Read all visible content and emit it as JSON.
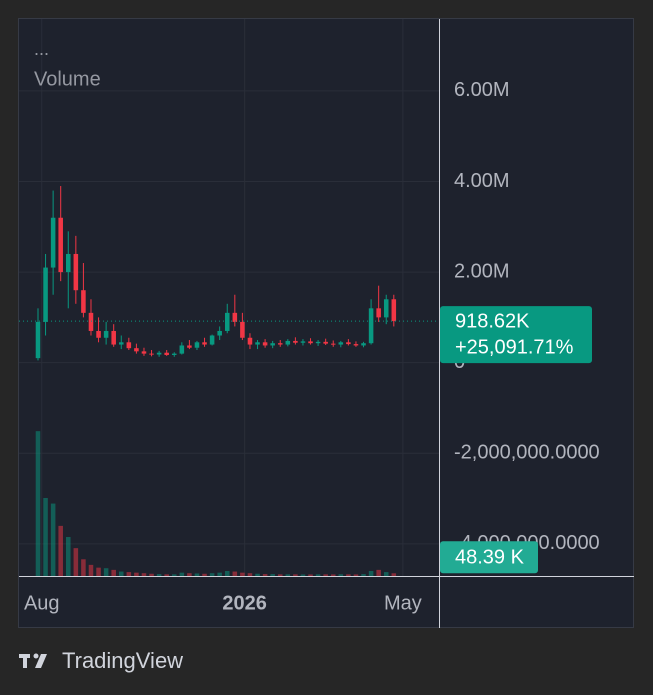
{
  "chart_data": {
    "type": "candlestick",
    "legend_dots": "...",
    "indicator_title": "Volume",
    "up_color": "#089981",
    "down_color": "#f23645",
    "grid": true,
    "ylim": [
      -4710000,
      7610000
    ],
    "yticks": [
      {
        "value": 6000000,
        "label": "6.00M"
      },
      {
        "value": 4000000,
        "label": "4.00M"
      },
      {
        "value": 2000000,
        "label": "2.00M"
      },
      0,
      {
        "value": -2000000,
        "label": "-2,000,000.0000"
      },
      {
        "value": -4000000,
        "label": "-4,000,000.0000"
      }
    ],
    "xlim": [
      -2.64,
      52.97
    ],
    "xticks": [
      {
        "value": 0.5,
        "label": "Aug"
      },
      {
        "value": 27.3,
        "label": "2026"
      },
      {
        "value": 48.2,
        "label": "May"
      }
    ],
    "open": [
      100000,
      900000,
      2100000,
      3200000,
      2000000,
      2400000,
      1600000,
      1100000,
      700000,
      550000,
      700000,
      400000,
      450000,
      320000,
      250000,
      200000,
      180000,
      220000,
      170000,
      200000,
      380000,
      330000,
      450000,
      400000,
      600000,
      700000,
      1100000,
      900000,
      550000,
      400000,
      450000,
      380000,
      430000,
      400000,
      480000,
      440000,
      470000,
      430000,
      460000,
      420000,
      400000,
      450000,
      410000,
      380000,
      430000,
      1200000,
      1000000,
      1400000
    ],
    "high": [
      1200000,
      2400000,
      3800000,
      3900000,
      2900000,
      2800000,
      2200000,
      1400000,
      1000000,
      900000,
      850000,
      600000,
      550000,
      420000,
      330000,
      280000,
      260000,
      280000,
      230000,
      450000,
      500000,
      480000,
      550000,
      620000,
      800000,
      1300000,
      1500000,
      1100000,
      650000,
      500000,
      520000,
      480000,
      500000,
      520000,
      560000,
      520000,
      540000,
      500000,
      530000,
      490000,
      480000,
      520000,
      470000,
      460000,
      1400000,
      1700000,
      1500000,
      1500000
    ],
    "low": [
      50000,
      600000,
      1500000,
      1800000,
      1200000,
      1300000,
      1000000,
      600000,
      450000,
      400000,
      350000,
      300000,
      280000,
      200000,
      150000,
      140000,
      130000,
      150000,
      130000,
      180000,
      300000,
      280000,
      350000,
      380000,
      500000,
      650000,
      800000,
      500000,
      300000,
      300000,
      330000,
      320000,
      350000,
      360000,
      400000,
      380000,
      400000,
      370000,
      390000,
      350000,
      340000,
      380000,
      350000,
      340000,
      400000,
      900000,
      850000,
      800000
    ],
    "close": [
      900000,
      2100000,
      3200000,
      2000000,
      2400000,
      1600000,
      1100000,
      700000,
      550000,
      700000,
      400000,
      450000,
      320000,
      250000,
      200000,
      180000,
      220000,
      170000,
      200000,
      380000,
      330000,
      450000,
      400000,
      600000,
      700000,
      1100000,
      900000,
      550000,
      400000,
      450000,
      380000,
      430000,
      400000,
      480000,
      440000,
      470000,
      430000,
      460000,
      420000,
      400000,
      450000,
      410000,
      380000,
      430000,
      1200000,
      1000000,
      1400000,
      918620
    ],
    "volume": [
      2600000,
      1400000,
      1300000,
      900000,
      700000,
      500000,
      300000,
      200000,
      150000,
      140000,
      110000,
      80000,
      70000,
      60000,
      50000,
      40000,
      35000,
      30000,
      30000,
      60000,
      50000,
      45000,
      40000,
      50000,
      60000,
      90000,
      80000,
      60000,
      50000,
      40000,
      35000,
      35000,
      30000,
      30000,
      30000,
      28000,
      28000,
      30000,
      30000,
      28000,
      32000,
      30000,
      28000,
      35000,
      90000,
      110000,
      70000,
      48390
    ],
    "volume_lim": [
      0,
      2800000
    ],
    "last_price": {
      "value": 918620,
      "label": "918.62K"
    },
    "change_label": "+25,091.71%",
    "last_volume": {
      "value": 48390,
      "label": "48.39 K"
    }
  },
  "footer": {
    "brand": "TradingView"
  }
}
